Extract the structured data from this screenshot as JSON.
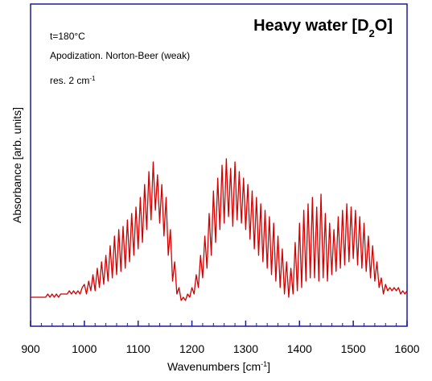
{
  "chart_data": {
    "type": "line",
    "title": [
      "Heavy water [D",
      "2",
      "O]"
    ],
    "annotations": [
      "t=180°C",
      "Apodization. Norton-Beer (weak)",
      [
        "res. 2 cm",
        "-1"
      ]
    ],
    "x_label": [
      "Wavenumbers [cm",
      "-1",
      "]"
    ],
    "y_label": "Absorbance [arb. units]",
    "xlim": [
      900,
      1600
    ],
    "xticks": [
      900,
      1000,
      1100,
      1200,
      1300,
      1400,
      1500,
      1600
    ],
    "ylim": [
      0,
      100
    ],
    "x": [
      900,
      904,
      908,
      912,
      916,
      920,
      924,
      928,
      932,
      936,
      940,
      944,
      948,
      952,
      956,
      960,
      964,
      968,
      972,
      976,
      980,
      984,
      988,
      992,
      996,
      1000,
      1004,
      1008,
      1012,
      1016,
      1020,
      1024,
      1028,
      1032,
      1036,
      1040,
      1044,
      1048,
      1052,
      1056,
      1060,
      1064,
      1068,
      1072,
      1076,
      1080,
      1084,
      1088,
      1092,
      1096,
      1100,
      1104,
      1108,
      1112,
      1116,
      1120,
      1124,
      1128,
      1132,
      1136,
      1140,
      1144,
      1148,
      1152,
      1156,
      1160,
      1164,
      1168,
      1172,
      1176,
      1180,
      1184,
      1188,
      1192,
      1196,
      1200,
      1204,
      1208,
      1212,
      1216,
      1220,
      1224,
      1228,
      1232,
      1236,
      1240,
      1244,
      1248,
      1252,
      1256,
      1260,
      1264,
      1268,
      1272,
      1276,
      1280,
      1284,
      1288,
      1292,
      1296,
      1300,
      1304,
      1308,
      1312,
      1316,
      1320,
      1324,
      1328,
      1332,
      1336,
      1340,
      1344,
      1348,
      1352,
      1356,
      1360,
      1364,
      1368,
      1372,
      1376,
      1380,
      1384,
      1388,
      1392,
      1396,
      1400,
      1404,
      1408,
      1412,
      1416,
      1420,
      1424,
      1428,
      1432,
      1436,
      1440,
      1444,
      1448,
      1452,
      1456,
      1460,
      1464,
      1468,
      1472,
      1476,
      1480,
      1484,
      1488,
      1492,
      1496,
      1500,
      1504,
      1508,
      1512,
      1516,
      1520,
      1524,
      1528,
      1532,
      1536,
      1540,
      1544,
      1548,
      1552,
      1556,
      1560,
      1564,
      1568,
      1572,
      1576,
      1580,
      1584,
      1588,
      1592,
      1596,
      1600
    ],
    "series": [
      {
        "color": "#d40000",
        "values": [
          9,
          9,
          9,
          9,
          9,
          9,
          9,
          9,
          10,
          9,
          10,
          9,
          10,
          9,
          10,
          10,
          10,
          10,
          11,
          10,
          11,
          10,
          11,
          10,
          12,
          13,
          10,
          14,
          11,
          16,
          11,
          18,
          12,
          20,
          13,
          22,
          14,
          25,
          15,
          28,
          16,
          30,
          17,
          31,
          18,
          33,
          20,
          35,
          22,
          37,
          24,
          40,
          26,
          44,
          30,
          48,
          33,
          51,
          36,
          47,
          32,
          44,
          28,
          40,
          22,
          30,
          14,
          20,
          10,
          12,
          8,
          9,
          8,
          10,
          9,
          12,
          10,
          16,
          12,
          22,
          15,
          28,
          18,
          35,
          22,
          42,
          26,
          46,
          30,
          50,
          32,
          52,
          34,
          49,
          31,
          51,
          33,
          48,
          32,
          46,
          30,
          44,
          27,
          42,
          24,
          40,
          22,
          38,
          20,
          36,
          18,
          34,
          16,
          32,
          14,
          28,
          12,
          24,
          10,
          20,
          9,
          18,
          10,
          26,
          11,
          32,
          12,
          36,
          14,
          38,
          15,
          40,
          15,
          37,
          14,
          41,
          15,
          35,
          14,
          32,
          16,
          30,
          17,
          34,
          18,
          36,
          19,
          38,
          20,
          37,
          21,
          36,
          19,
          34,
          18,
          32,
          17,
          28,
          15,
          25,
          14,
          20,
          12,
          15,
          10,
          13,
          11,
          12,
          11,
          12,
          11,
          12,
          10,
          11,
          10,
          11
        ]
      }
    ]
  }
}
